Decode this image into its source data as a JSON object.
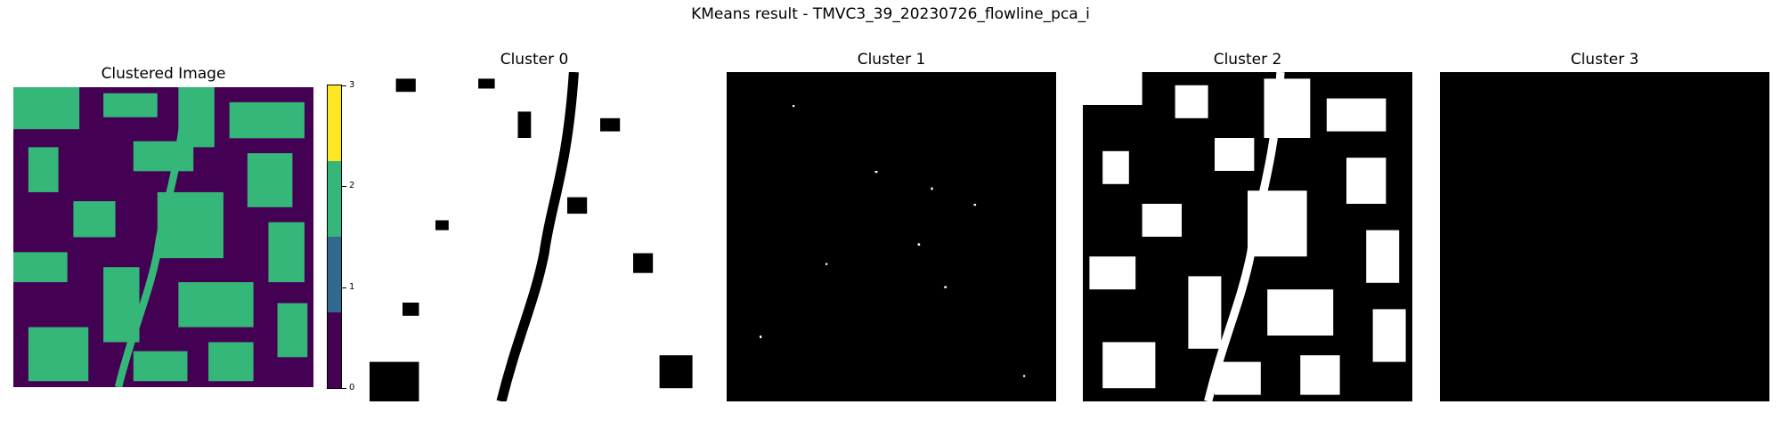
{
  "figure": {
    "suptitle": "KMeans result - TMVC3_39_20230726_flowline_pca_i"
  },
  "panels": [
    {
      "title": "Clustered Image"
    },
    {
      "title": "Cluster 0"
    },
    {
      "title": "Cluster 1"
    },
    {
      "title": "Cluster 2"
    },
    {
      "title": "Cluster 3"
    }
  ],
  "colorbar": {
    "ticks": [
      "0",
      "1",
      "2",
      "3"
    ],
    "colors": [
      "#440154",
      "#31688e",
      "#35b779",
      "#fde725"
    ]
  },
  "colors": {
    "cluster_off": "#000000",
    "cluster_on": "#ffffff"
  }
}
